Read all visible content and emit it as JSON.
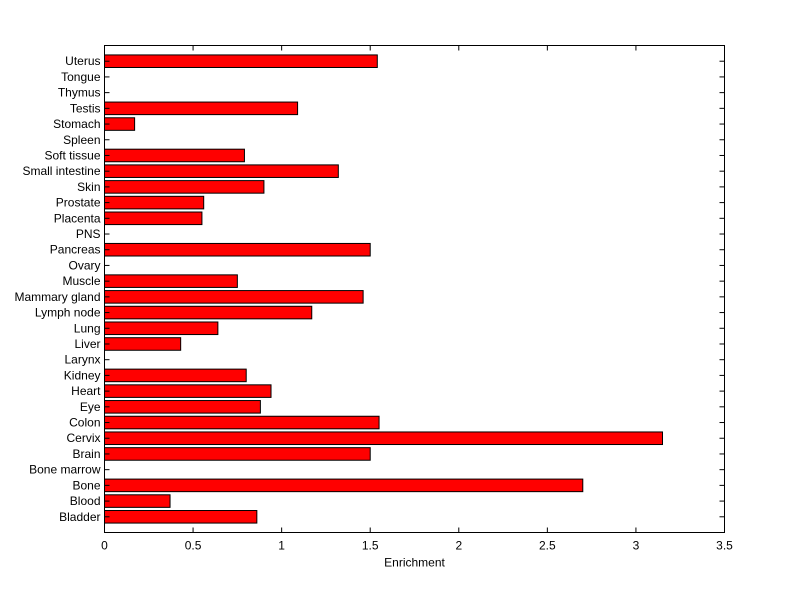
{
  "chart_data": {
    "type": "bar",
    "orientation": "horizontal",
    "title": "",
    "xlabel": "Enrichment",
    "ylabel": "",
    "xlim": [
      0,
      3.5
    ],
    "xticks": [
      0,
      0.5,
      1,
      1.5,
      2,
      2.5,
      3,
      3.5
    ],
    "xtick_labels": [
      "0",
      "0.5",
      "1",
      "1.5",
      "2",
      "2.5",
      "3",
      "3.5"
    ],
    "grid": false,
    "legend": "none",
    "bar_color": "#ff0000",
    "bar_edge_color": "#000000",
    "categories": [
      "Uterus",
      "Tongue",
      "Thymus",
      "Testis",
      "Stomach",
      "Spleen",
      "Soft tissue",
      "Small intestine",
      "Skin",
      "Prostate",
      "Placenta",
      "PNS",
      "Pancreas",
      "Ovary",
      "Muscle",
      "Mammary gland",
      "Lymph node",
      "Lung",
      "Liver",
      "Larynx",
      "Kidney",
      "Heart",
      "Eye",
      "Colon",
      "Cervix",
      "Brain",
      "Bone marrow",
      "Bone",
      "Blood",
      "Bladder"
    ],
    "values": [
      1.54,
      0,
      0,
      1.09,
      0.17,
      0,
      0.79,
      1.32,
      0.9,
      0.56,
      0.55,
      0,
      1.5,
      0,
      0.75,
      1.46,
      1.17,
      0.64,
      0.43,
      0,
      0.8,
      0.94,
      0.88,
      1.55,
      3.15,
      1.5,
      0,
      2.7,
      0.37,
      0.86
    ]
  }
}
